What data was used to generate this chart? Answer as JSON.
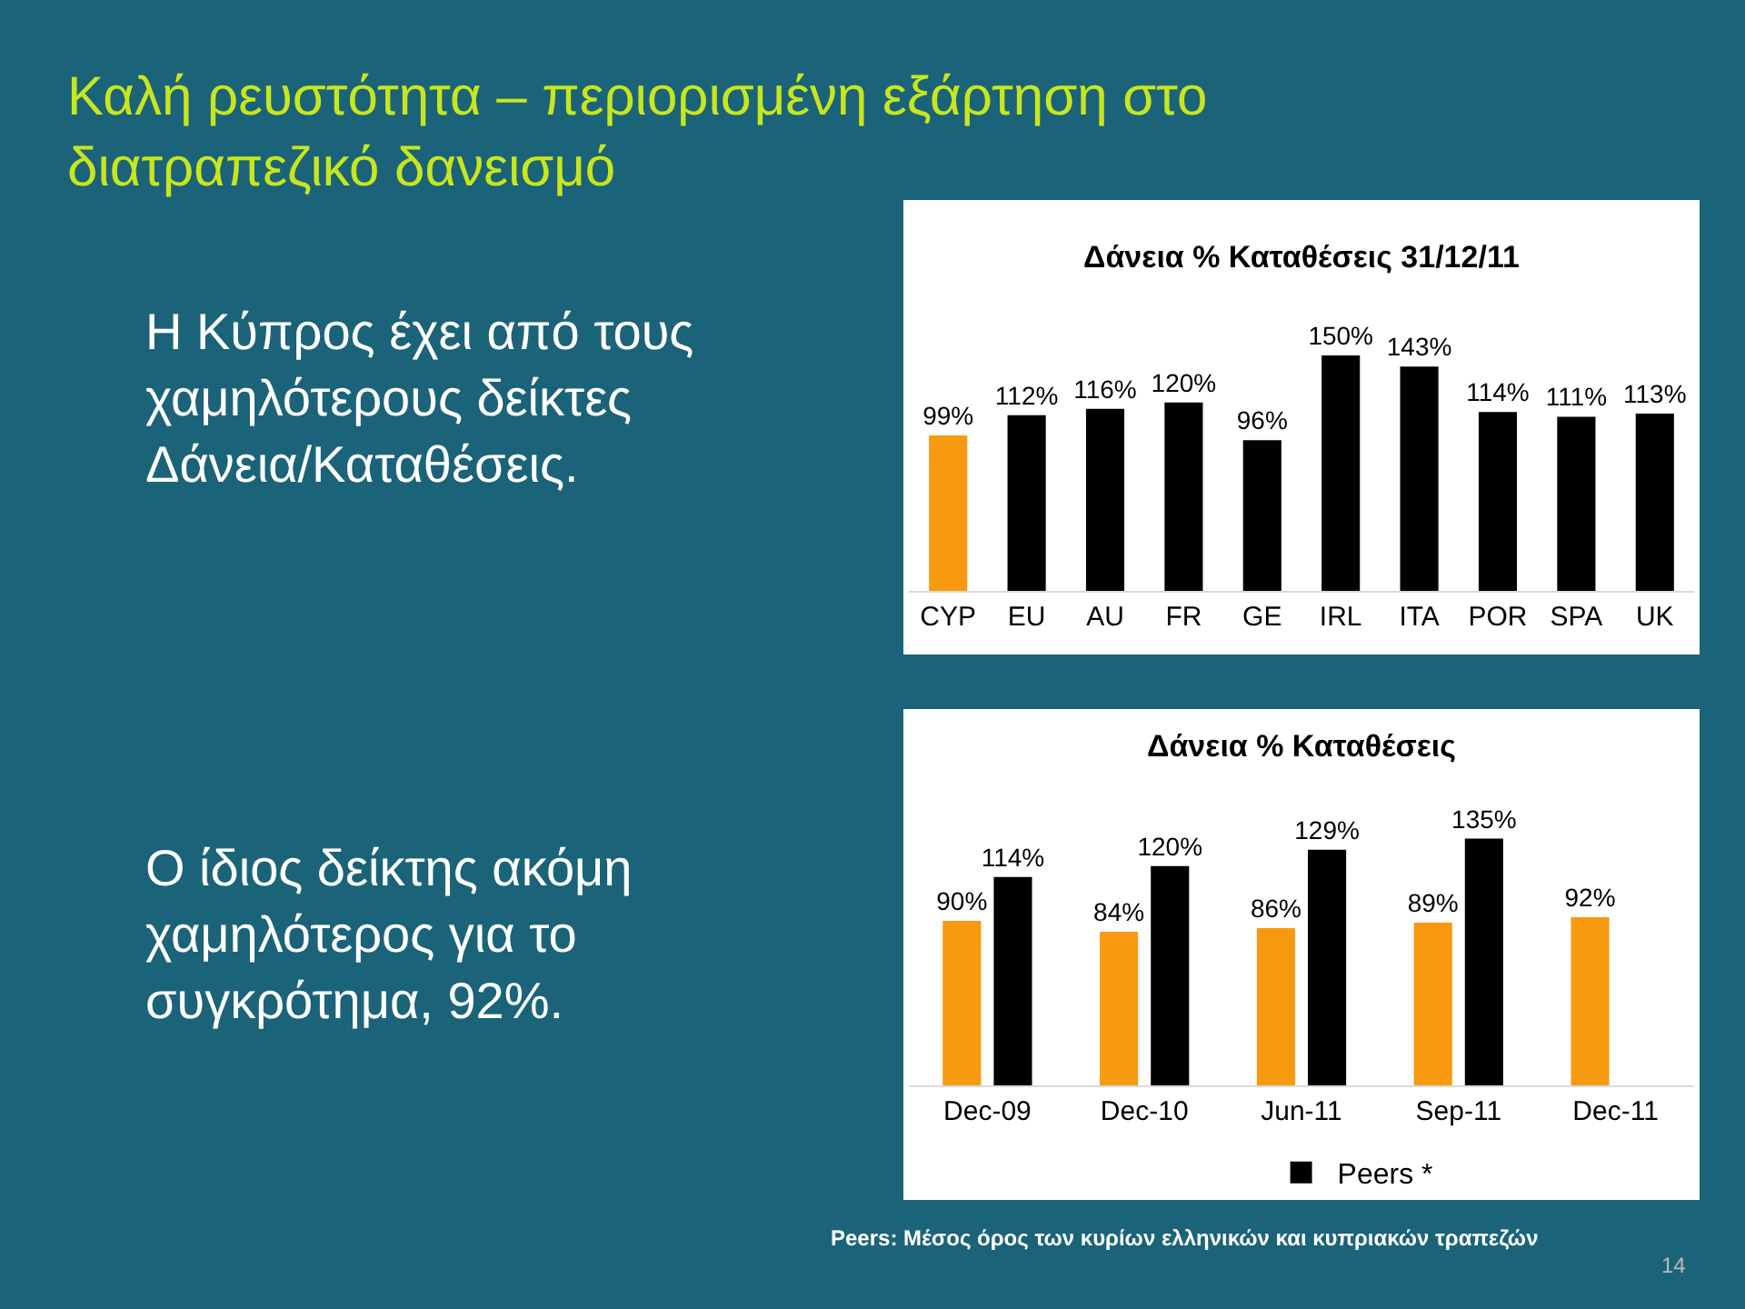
{
  "chart_data": [
    {
      "type": "other",
      "title": "Καλή ρευστότητα – περιορισμένη εξάρτηση στο διατραπεζικό δανεισμό",
      "annotations": [
        "Η Κύπρος έχει από τους χαμηλότερους δείκτες Δάνεια/Καταθέσεις.",
        "Ο ίδιος δείκτης ακόμη χαμηλότερος για το συγκρότημα, 92%."
      ]
    },
    {
      "type": "bar",
      "title": "Δάνεια % Καταθέσεις 31/12/11",
      "categories": [
        "CYP",
        "EU",
        "AU",
        "FR",
        "GE",
        "IRL",
        "ITA",
        "POR",
        "SPA",
        "UK"
      ],
      "values": [
        99,
        112,
        116,
        120,
        96,
        150,
        143,
        114,
        111,
        113
      ],
      "colors": [
        "#f79a10",
        "#000000",
        "#000000",
        "#000000",
        "#000000",
        "#000000",
        "#000000",
        "#000000",
        "#000000",
        "#000000"
      ],
      "value_labels": [
        "99%",
        "112%",
        "116%",
        "120%",
        "96%",
        "150%",
        "143%",
        "114%",
        "111%",
        "113%"
      ],
      "tick_labels": "x",
      "legend": false
    },
    {
      "type": "bar",
      "title": "Δάνεια % Καταθέσεις",
      "categories": [
        "Dec-09",
        "Dec-10",
        "Jun-11",
        "Sep-11",
        "Dec-11"
      ],
      "series": [
        {
          "color": "#f79a10",
          "values": [
            90,
            84,
            86,
            89,
            92
          ],
          "value_labels": [
            "90%",
            "84%",
            "86%",
            "89%",
            "92%"
          ]
        },
        {
          "name": "Peers *",
          "color": "#000000",
          "values": [
            114,
            120,
            129,
            135,
            null
          ],
          "value_labels": [
            "114%",
            "120%",
            "129%",
            "135%",
            null
          ]
        }
      ],
      "tick_labels": "x",
      "legend": "bottom",
      "annotations": [
        "Peers: Μέσος όρος των κυρίων ελληνικών και κυπριακών τραπεζών",
        "14"
      ]
    }
  ]
}
